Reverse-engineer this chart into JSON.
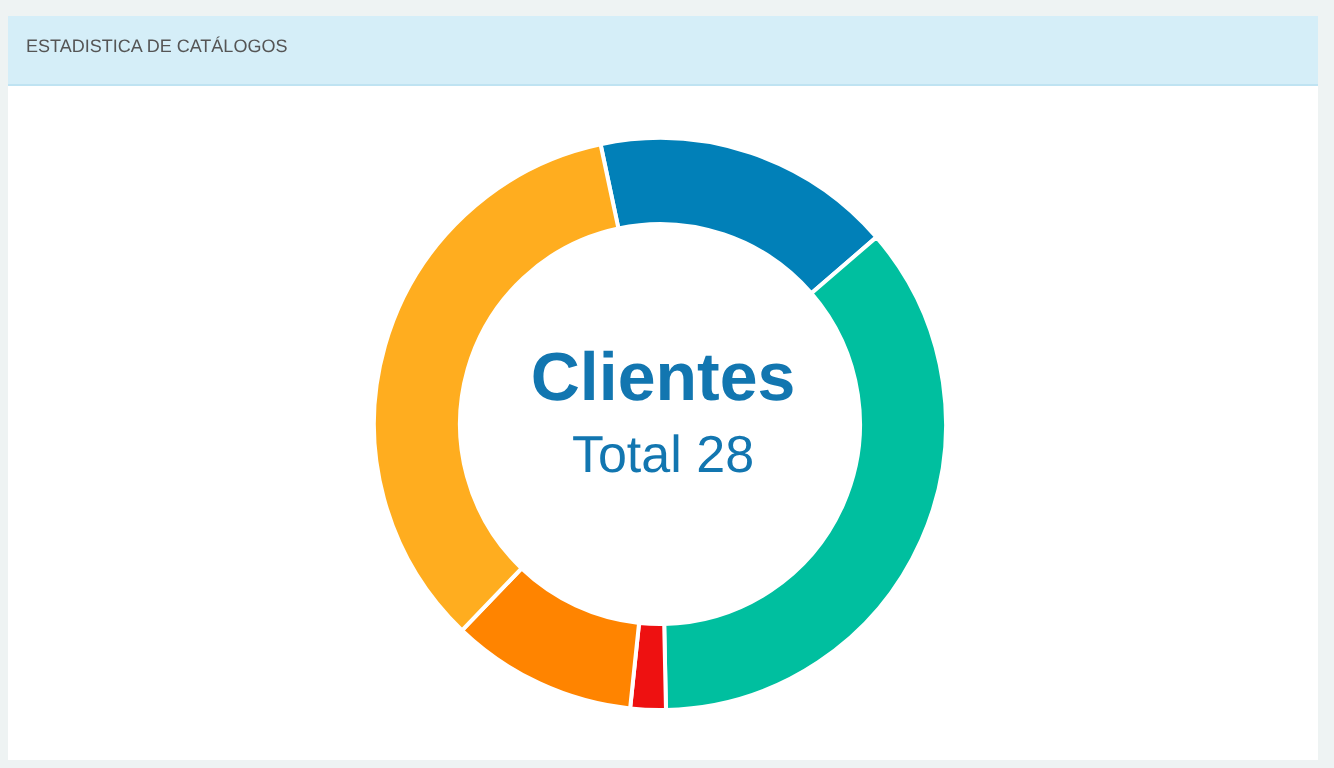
{
  "chart_data": {
    "type": "donut",
    "title": "ESTADISTICA DE CATÁLOGOS",
    "categories": [
      null,
      null,
      null,
      null,
      null
    ],
    "values": [
      17,
      36,
      2,
      10.5,
      34.5
    ],
    "colors": [
      "#0180b8",
      "#00bf9f",
      "#ee1111",
      "#ff8400",
      "#ffad1f"
    ],
    "annotations": [
      "Clientes",
      "Total 28"
    ]
  }
}
